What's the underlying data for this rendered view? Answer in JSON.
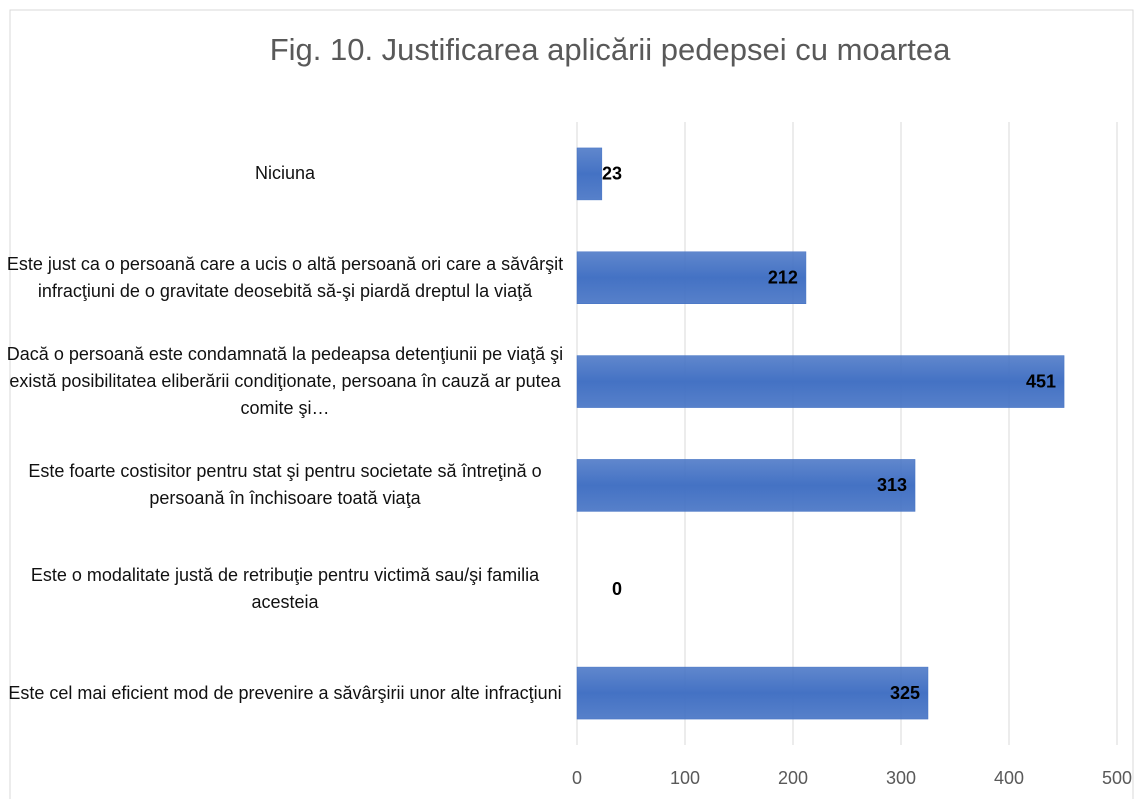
{
  "chart_data": {
    "type": "hbar",
    "title": "Fig. 10. Justificarea aplicării pedepsei cu moartea",
    "categories": [
      "Niciuna",
      "Este just ca o persoană care a ucis o altă persoană ori care a săvârşit infracţiuni de o gravitate deosebită să-şi piardă dreptul la viaţă",
      "Dacă o persoană este condamnată la pedeapsa detenţiunii pe viaţă şi există posibilitatea eliberării condiţionate, persoana în cauză ar putea comite şi…",
      "Este foarte costisitor pentru stat şi pentru societate să întreţină o persoană în închisoare toată viaţa",
      "Este o modalitate justă de retribuţie pentru victimă sau/şi familia acesteia",
      "Este cel mai eficient mod de prevenire a săvârşirii unor alte infracţiuni"
    ],
    "values": [
      23,
      212,
      451,
      313,
      0,
      325
    ],
    "color": "#4472c4",
    "xlim": [
      0,
      500
    ],
    "xticks": [
      0,
      100,
      200,
      300,
      400,
      500
    ],
    "grid": true
  }
}
